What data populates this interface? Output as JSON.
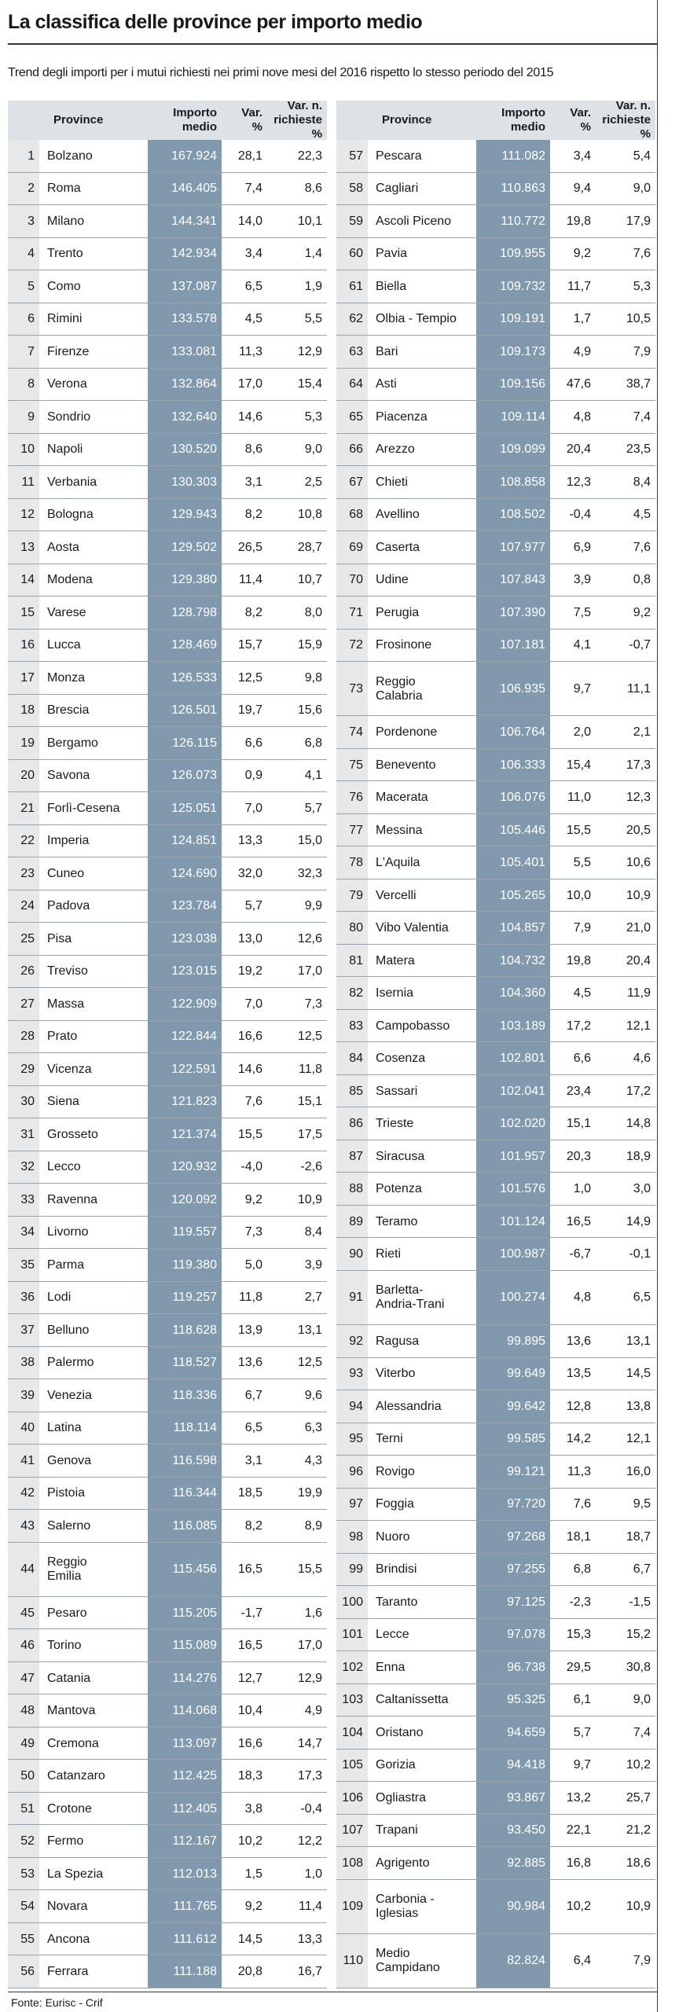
{
  "header": {
    "title": "La classifica delle province per importo medio",
    "subtitle": "Trend degli importi per i mutui richiesti nei primi nove mesi del 2016 rispetto lo stesso periodo del 2015"
  },
  "tables": [
    {
      "columns": [
        "Province",
        "Importo\nmedio",
        "Var.\n%",
        "Var. n.\nrichieste %"
      ],
      "rows": [
        [
          1,
          "Bolzano",
          "167.924",
          "28,1",
          "22,3"
        ],
        [
          2,
          "Roma",
          "146.405",
          "7,4",
          "8,6"
        ],
        [
          3,
          "Milano",
          "144.341",
          "14,0",
          "10,1"
        ],
        [
          4,
          "Trento",
          "142.934",
          "3,4",
          "1,4"
        ],
        [
          5,
          "Como",
          "137.087",
          "6,5",
          "1,9"
        ],
        [
          6,
          "Rimini",
          "133.578",
          "4,5",
          "5,5"
        ],
        [
          7,
          "Firenze",
          "133.081",
          "11,3",
          "12,9"
        ],
        [
          8,
          "Verona",
          "132.864",
          "17,0",
          "15,4"
        ],
        [
          9,
          "Sondrio",
          "132.640",
          "14,6",
          "5,3"
        ],
        [
          10,
          "Napoli",
          "130.520",
          "8,6",
          "9,0"
        ],
        [
          11,
          "Verbania",
          "130.303",
          "3,1",
          "2,5"
        ],
        [
          12,
          "Bologna",
          "129.943",
          "8,2",
          "10,8"
        ],
        [
          13,
          "Aosta",
          "129.502",
          "26,5",
          "28,7"
        ],
        [
          14,
          "Modena",
          "129.380",
          "11,4",
          "10,7"
        ],
        [
          15,
          "Varese",
          "128.798",
          "8,2",
          "8,0"
        ],
        [
          16,
          "Lucca",
          "128.469",
          "15,7",
          "15,9"
        ],
        [
          17,
          "Monza",
          "126.533",
          "12,5",
          "9,8"
        ],
        [
          18,
          "Brescia",
          "126.501",
          "19,7",
          "15,6"
        ],
        [
          19,
          "Bergamo",
          "126.115",
          "6,6",
          "6,8"
        ],
        [
          20,
          "Savona",
          "126.073",
          "0,9",
          "4,1"
        ],
        [
          21,
          "Forlì-Cesena",
          "125.051",
          "7,0",
          "5,7"
        ],
        [
          22,
          "Imperia",
          "124.851",
          "13,3",
          "15,0"
        ],
        [
          23,
          "Cuneo",
          "124.690",
          "32,0",
          "32,3"
        ],
        [
          24,
          "Padova",
          "123.784",
          "5,7",
          "9,9"
        ],
        [
          25,
          "Pisa",
          "123.038",
          "13,0",
          "12,6"
        ],
        [
          26,
          "Treviso",
          "123.015",
          "19,2",
          "17,0"
        ],
        [
          27,
          "Massa",
          "122.909",
          "7,0",
          "7,3"
        ],
        [
          28,
          "Prato",
          "122.844",
          "16,6",
          "12,5"
        ],
        [
          29,
          "Vicenza",
          "122.591",
          "14,6",
          "11,8"
        ],
        [
          30,
          "Siena",
          "121.823",
          "7,6",
          "15,1"
        ],
        [
          31,
          "Grosseto",
          "121.374",
          "15,5",
          "17,5"
        ],
        [
          32,
          "Lecco",
          "120.932",
          "-4,0",
          "-2,6"
        ],
        [
          33,
          "Ravenna",
          "120.092",
          "9,2",
          "10,9"
        ],
        [
          34,
          "Livorno",
          "119.557",
          "7,3",
          "8,4"
        ],
        [
          35,
          "Parma",
          "119.380",
          "5,0",
          "3,9"
        ],
        [
          36,
          "Lodi",
          "119.257",
          "11,8",
          "2,7"
        ],
        [
          37,
          "Belluno",
          "118.628",
          "13,9",
          "13,1"
        ],
        [
          38,
          "Palermo",
          "118.527",
          "13,6",
          "12,5"
        ],
        [
          39,
          "Venezia",
          "118.336",
          "6,7",
          "9,6"
        ],
        [
          40,
          "Latina",
          "118.114",
          "6,5",
          "6,3"
        ],
        [
          41,
          "Genova",
          "116.598",
          "3,1",
          "4,3"
        ],
        [
          42,
          "Pistoia",
          "116.344",
          "18,5",
          "19,9"
        ],
        [
          43,
          "Salerno",
          "116.085",
          "8,2",
          "8,9"
        ],
        [
          44,
          "Reggio\nEmilia",
          "115.456",
          "16,5",
          "15,5"
        ],
        [
          45,
          "Pesaro",
          "115.205",
          "-1,7",
          "1,6"
        ],
        [
          46,
          "Torino",
          "115.089",
          "16,5",
          "17,0"
        ],
        [
          47,
          "Catania",
          "114.276",
          "12,7",
          "12,9"
        ],
        [
          48,
          "Mantova",
          "114.068",
          "10,4",
          "4,9"
        ],
        [
          49,
          "Cremona",
          "113.097",
          "16,6",
          "14,7"
        ],
        [
          50,
          "Catanzaro",
          "112.425",
          "18,3",
          "17,3"
        ],
        [
          51,
          "Crotone",
          "112.405",
          "3,8",
          "-0,4"
        ],
        [
          52,
          "Fermo",
          "112.167",
          "10,2",
          "12,2"
        ],
        [
          53,
          "La Spezia",
          "112.013",
          "1,5",
          "1,0"
        ],
        [
          54,
          "Novara",
          "111.765",
          "9,2",
          "11,4"
        ],
        [
          55,
          "Ancona",
          "111.612",
          "14,5",
          "13,3"
        ],
        [
          56,
          "Ferrara",
          "111.188",
          "20,8",
          "16,7"
        ]
      ]
    },
    {
      "columns": [
        "Province",
        "Importo\nmedio",
        "Var.\n%",
        "Var. n.\nrichieste %"
      ],
      "rows": [
        [
          57,
          "Pescara",
          "111.082",
          "3,4",
          "5,4"
        ],
        [
          58,
          "Cagliari",
          "110.863",
          "9,4",
          "9,0"
        ],
        [
          59,
          "Ascoli Piceno",
          "110.772",
          "19,8",
          "17,9"
        ],
        [
          60,
          "Pavia",
          "109.955",
          "9,2",
          "7,6"
        ],
        [
          61,
          "Biella",
          "109.732",
          "11,7",
          "5,3"
        ],
        [
          62,
          "Olbia - Tempio",
          "109.191",
          "1,7",
          "10,5"
        ],
        [
          63,
          "Bari",
          "109.173",
          "4,9",
          "7,9"
        ],
        [
          64,
          "Asti",
          "109.156",
          "47,6",
          "38,7"
        ],
        [
          65,
          "Piacenza",
          "109.114",
          "4,8",
          "7,4"
        ],
        [
          66,
          "Arezzo",
          "109.099",
          "20,4",
          "23,5"
        ],
        [
          67,
          "Chieti",
          "108.858",
          "12,3",
          "8,4"
        ],
        [
          68,
          "Avellino",
          "108.502",
          "-0,4",
          "4,5"
        ],
        [
          69,
          "Caserta",
          "107.977",
          "6,9",
          "7,6"
        ],
        [
          70,
          "Udine",
          "107.843",
          "3,9",
          "0,8"
        ],
        [
          71,
          "Perugia",
          "107.390",
          "7,5",
          "9,2"
        ],
        [
          72,
          "Frosinone",
          "107.181",
          "4,1",
          "-0,7"
        ],
        [
          73,
          "Reggio\nCalabria",
          "106.935",
          "9,7",
          "11,1"
        ],
        [
          74,
          "Pordenone",
          "106.764",
          "2,0",
          "2,1"
        ],
        [
          75,
          "Benevento",
          "106.333",
          "15,4",
          "17,3"
        ],
        [
          76,
          "Macerata",
          "106.076",
          "11,0",
          "12,3"
        ],
        [
          77,
          "Messina",
          "105.446",
          "15,5",
          "20,5"
        ],
        [
          78,
          "L'Aquila",
          "105.401",
          "5,5",
          "10,6"
        ],
        [
          79,
          "Vercelli",
          "105.265",
          "10,0",
          "10,9"
        ],
        [
          80,
          "Vibo Valentia",
          "104.857",
          "7,9",
          "21,0"
        ],
        [
          81,
          "Matera",
          "104.732",
          "19,8",
          "20,4"
        ],
        [
          82,
          "Isernia",
          "104.360",
          "4,5",
          "11,9"
        ],
        [
          83,
          "Campobasso",
          "103.189",
          "17,2",
          "12,1"
        ],
        [
          84,
          "Cosenza",
          "102.801",
          "6,6",
          "4,6"
        ],
        [
          85,
          "Sassari",
          "102.041",
          "23,4",
          "17,2"
        ],
        [
          86,
          "Trieste",
          "102.020",
          "15,1",
          "14,8"
        ],
        [
          87,
          "Siracusa",
          "101.957",
          "20,3",
          "18,9"
        ],
        [
          88,
          "Potenza",
          "101.576",
          "1,0",
          "3,0"
        ],
        [
          89,
          "Teramo",
          "101.124",
          "16,5",
          "14,9"
        ],
        [
          90,
          "Rieti",
          "100.987",
          "-6,7",
          "-0,1"
        ],
        [
          91,
          "Barletta-\nAndria-Trani",
          "100.274",
          "4,8",
          "6,5"
        ],
        [
          92,
          "Ragusa",
          "99.895",
          "13,6",
          "13,1"
        ],
        [
          93,
          "Viterbo",
          "99.649",
          "13,5",
          "14,5"
        ],
        [
          94,
          "Alessandria",
          "99.642",
          "12,8",
          "13,8"
        ],
        [
          95,
          "Terni",
          "99.585",
          "14,2",
          "12,1"
        ],
        [
          96,
          "Rovigo",
          "99.121",
          "11,3",
          "16,0"
        ],
        [
          97,
          "Foggia",
          "97.720",
          "7,6",
          "9,5"
        ],
        [
          98,
          "Nuoro",
          "97.268",
          "18,1",
          "18,7"
        ],
        [
          99,
          "Brindisi",
          "97.255",
          "6,8",
          "6,7"
        ],
        [
          100,
          "Taranto",
          "97.125",
          "-2,3",
          "-1,5"
        ],
        [
          101,
          "Lecce",
          "97.078",
          "15,3",
          "15,2"
        ],
        [
          102,
          "Enna",
          "96.738",
          "29,5",
          "30,8"
        ],
        [
          103,
          "Caltanissetta",
          "95.325",
          "6,1",
          "9,0"
        ],
        [
          104,
          "Oristano",
          "94.659",
          "5,7",
          "7,4"
        ],
        [
          105,
          "Gorizia",
          "94.418",
          "9,7",
          "10,2"
        ],
        [
          106,
          "Ogliastra",
          "93.867",
          "13,2",
          "25,7"
        ],
        [
          107,
          "Trapani",
          "93.450",
          "22,1",
          "21,2"
        ],
        [
          108,
          "Agrigento",
          "92.885",
          "16,8",
          "18,6"
        ],
        [
          109,
          "Carbonia -\nIglesias",
          "90.984",
          "10,2",
          "10,9"
        ],
        [
          110,
          "Medio\nCampidano",
          "82.824",
          "6,4",
          "7,9"
        ]
      ]
    }
  ],
  "source": "Fonte: Eurisc - Crif"
}
